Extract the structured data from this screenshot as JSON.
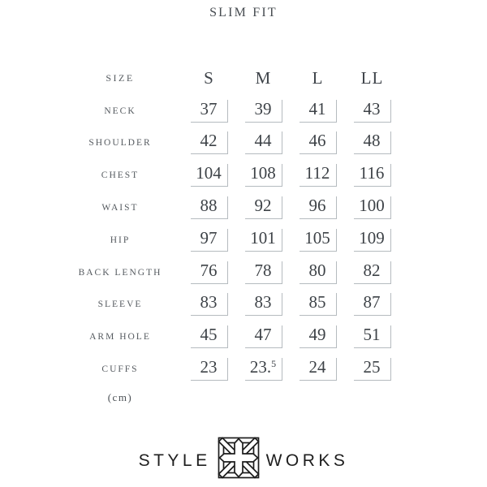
{
  "title": "SLIM FIT",
  "table": {
    "header_label": "SIZE",
    "columns": [
      "S",
      "M",
      "L",
      "LL"
    ],
    "rows": [
      {
        "label": "NECK",
        "values": [
          "37",
          "39",
          "41",
          "43"
        ]
      },
      {
        "label": "SHOULDER",
        "values": [
          "42",
          "44",
          "46",
          "48"
        ]
      },
      {
        "label": "CHEST",
        "values": [
          "104",
          "108",
          "112",
          "116"
        ]
      },
      {
        "label": "WAIST",
        "values": [
          "88",
          "92",
          "96",
          "100"
        ]
      },
      {
        "label": "HIP",
        "values": [
          "97",
          "101",
          "105",
          "109"
        ]
      },
      {
        "label": "BACK LENGTH",
        "values": [
          "76",
          "78",
          "80",
          "82"
        ]
      },
      {
        "label": "SLEEVE",
        "values": [
          "83",
          "83",
          "85",
          "87"
        ]
      },
      {
        "label": "ARM HOLE",
        "values": [
          "45",
          "47",
          "49",
          "51"
        ]
      },
      {
        "label": "CUFFS",
        "values": [
          "23",
          "23.5",
          "24",
          "25"
        ]
      }
    ],
    "unit_label": "(cm)"
  },
  "logo": {
    "left_text": "STYLE",
    "right_text": "WORKS",
    "emblem_icon": "interlaced-knot-icon",
    "color": "#1d1d1d"
  },
  "colors": {
    "background": "#ffffff",
    "title_text": "#474c51",
    "label_text": "#565b60",
    "value_text": "#3d4247",
    "cell_border": "#b5bbbf",
    "logo_text": "#1e1e1e"
  }
}
